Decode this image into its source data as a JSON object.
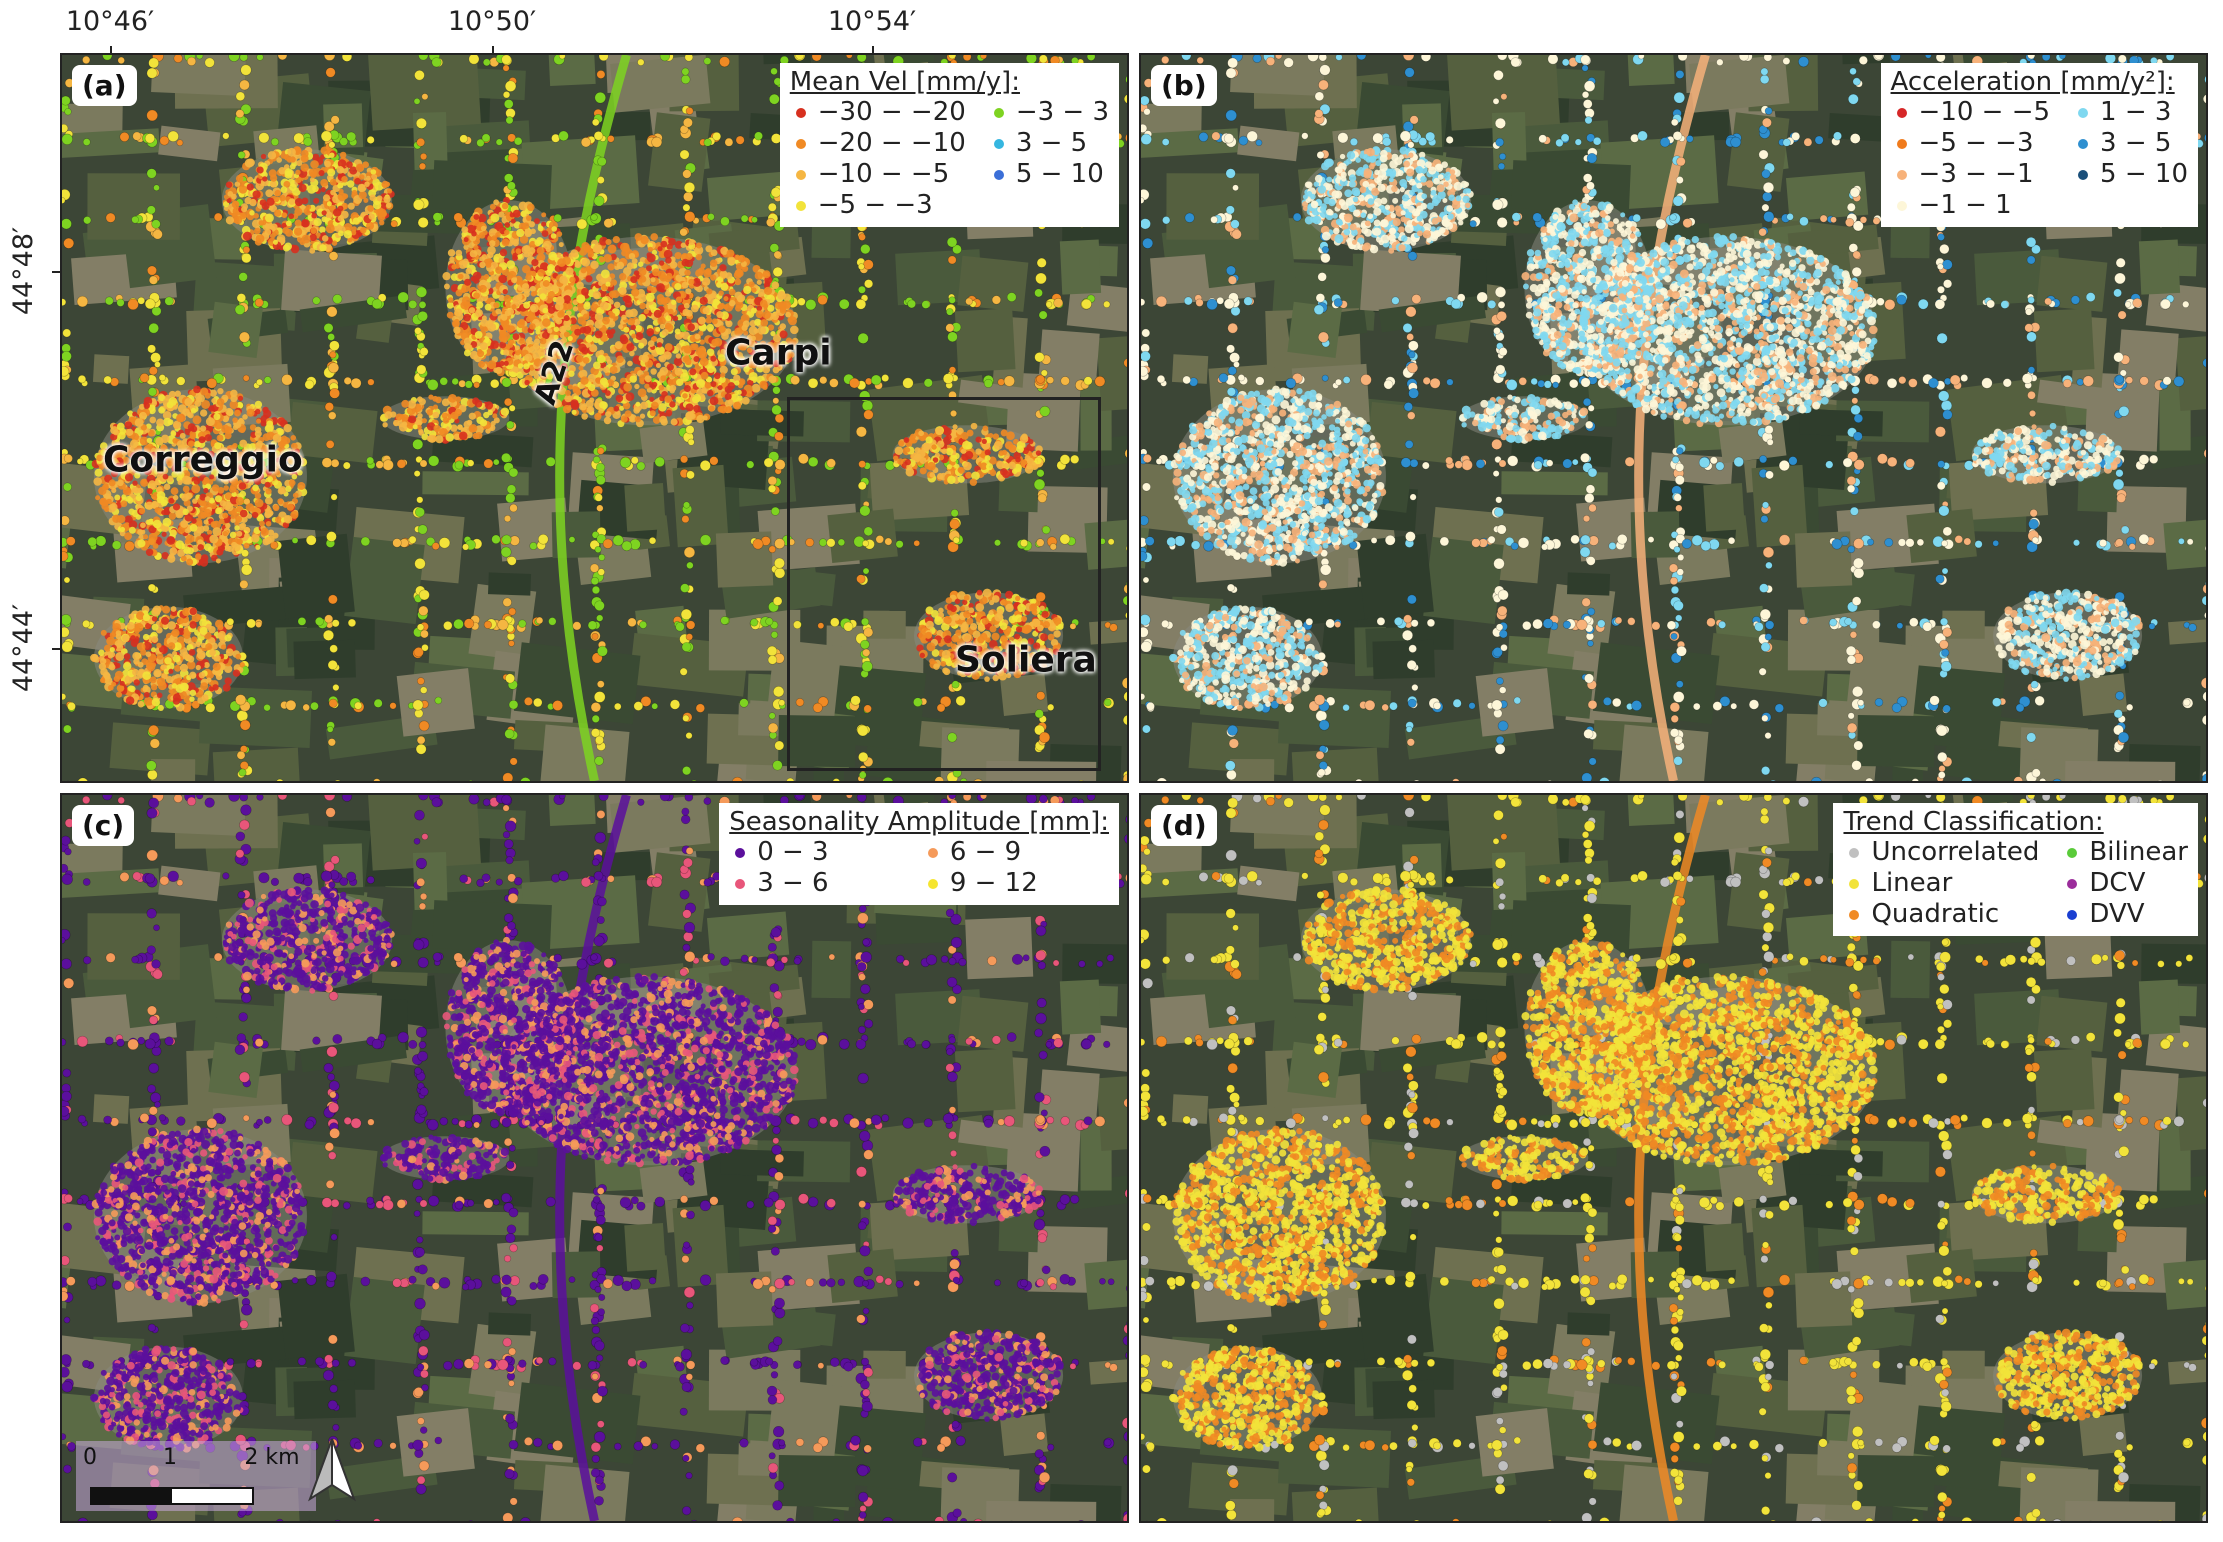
{
  "axes": {
    "lon_labels": [
      "10°46′",
      "10°50′",
      "10°54′"
    ],
    "lat_labels": [
      "44°48′",
      "44°44′"
    ]
  },
  "panels": [
    {
      "label": "(a)",
      "legend": {
        "title": "Mean Vel [mm/y]:",
        "items": [
          {
            "label": "−30 − −20",
            "color": "#d7301f"
          },
          {
            "label": "−20 − −10",
            "color": "#f08a24"
          },
          {
            "label": "−10 − −5",
            "color": "#f5b642"
          },
          {
            "label": "−5 − −3",
            "color": "#f2e33a"
          },
          {
            "label": "−3 − 3",
            "color": "#7ed321"
          },
          {
            "label": "3 − 5",
            "color": "#35b6e0"
          },
          {
            "label": "5 − 10",
            "color": "#3b6fd8"
          }
        ]
      },
      "places": [
        "Correggio",
        "Carpi",
        "Soliera",
        "A22"
      ]
    },
    {
      "label": "(b)",
      "legend": {
        "title": "Acceleration [mm/y²]:",
        "items": [
          {
            "label": "−10 − −5",
            "color": "#d62728"
          },
          {
            "label": "−5 − −3",
            "color": "#f07b1c"
          },
          {
            "label": "−3 − −1",
            "color": "#f7b27a"
          },
          {
            "label": "−1 − 1",
            "color": "#fdf6d8"
          },
          {
            "label": "1 − 3",
            "color": "#7fd8f0"
          },
          {
            "label": "3 − 5",
            "color": "#2e8fd0"
          },
          {
            "label": "5 − 10",
            "color": "#1a4f7a"
          }
        ]
      }
    },
    {
      "label": "(c)",
      "legend": {
        "title": "Seasonality Amplitude [mm]:",
        "items": [
          {
            "label": "0 − 3",
            "color": "#5b0f9c"
          },
          {
            "label": "3 − 6",
            "color": "#e8567a"
          },
          {
            "label": "6 − 9",
            "color": "#f59a5a"
          },
          {
            "label": "9 − 12",
            "color": "#f5e52f"
          }
        ]
      },
      "scale_bar": [
        "0",
        "1",
        "2 km"
      ]
    },
    {
      "label": "(d)",
      "legend": {
        "title": "Trend Classification:",
        "items": [
          {
            "label": "Uncorrelated",
            "color": "#c0c0c0"
          },
          {
            "label": "Linear",
            "color": "#f2e33a"
          },
          {
            "label": "Quadratic",
            "color": "#f08a24"
          },
          {
            "label": "Bilinear",
            "color": "#5acb3a"
          },
          {
            "label": "DCV",
            "color": "#9b2d9b"
          },
          {
            "label": "DVV",
            "color": "#1a3fd1"
          }
        ]
      }
    }
  ]
}
